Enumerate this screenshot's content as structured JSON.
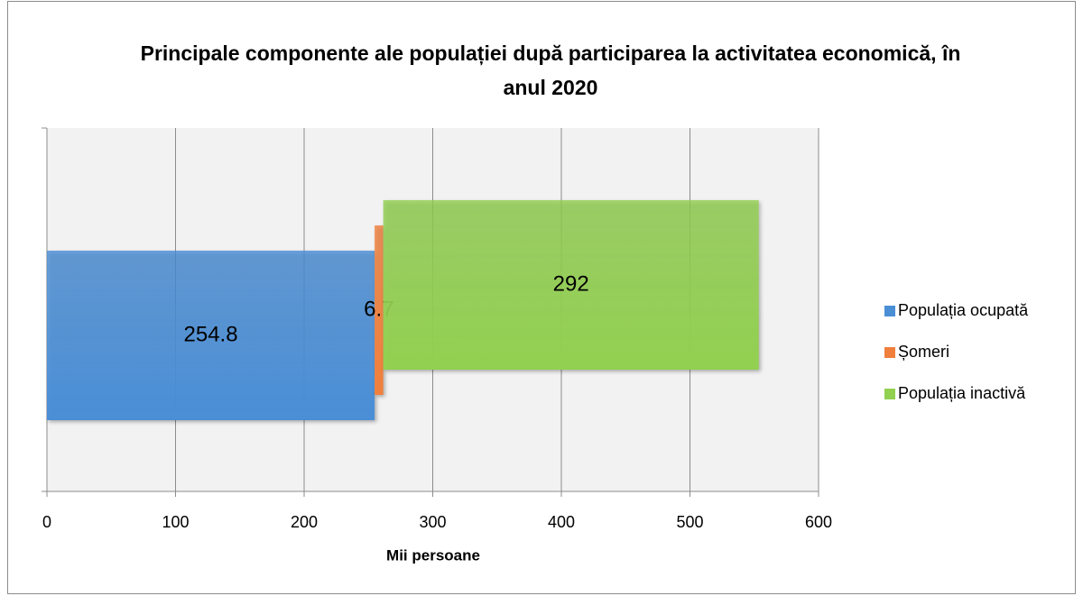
{
  "chart_data": {
    "type": "stacked_barh",
    "title": "Principale componente ale populației după participarea la activitatea economică, în anul 2020",
    "xlabel": "Mii persoane",
    "categories": [
      null
    ],
    "series": [
      {
        "name": "Populația ocupată",
        "color": "#4a8ed6",
        "values": [
          254.8
        ]
      },
      {
        "name": "Șomeri",
        "color": "#f07f3c",
        "values": [
          6.7
        ]
      },
      {
        "name": "Populația inactivă",
        "color": "#92d050",
        "values": [
          292
        ]
      }
    ],
    "xlim": [
      0,
      600
    ],
    "xticks": [
      0,
      100,
      200,
      300,
      400,
      500,
      600
    ],
    "grid": true,
    "legend": "right"
  }
}
